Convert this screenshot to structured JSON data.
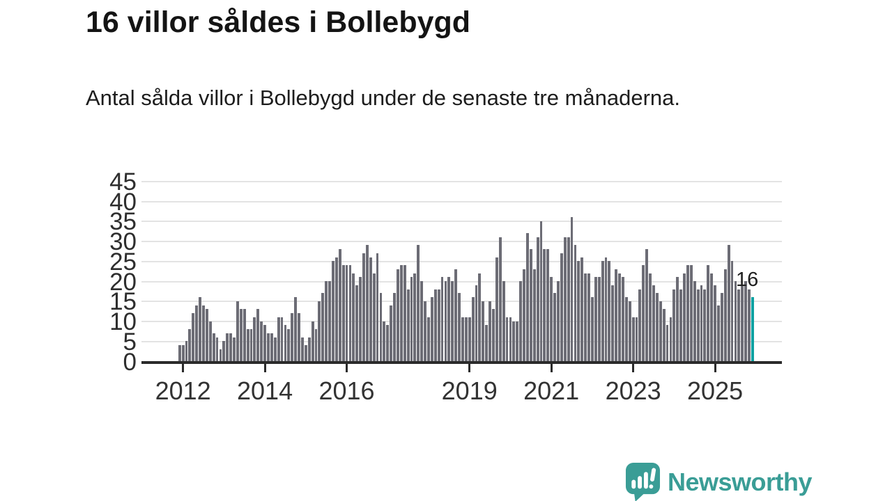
{
  "header": {
    "title": "16 villor såldes i Bollebygd",
    "subtitle": "Antal sålda villor i Bollebygd under de senaste tre månaderna."
  },
  "footer": {
    "brand": "Newsworthy"
  },
  "colors": {
    "bar": "#6c6c75",
    "highlight": "#0da2a3",
    "axis": "#2b2b2b",
    "gridline": "#e3e3e3",
    "logo_teal": "#3a9d96"
  },
  "chart_data": {
    "type": "bar",
    "title": "16 villor såldes i Bollebygd",
    "subtitle": "Antal sålda villor i Bollebygd under de senaste tre månaderna.",
    "start_period": "2011-12",
    "end_period": "2025-12",
    "ylim": [
      0,
      45
    ],
    "grid": true,
    "legend": "none",
    "y_ticks": [
      0,
      5,
      10,
      15,
      20,
      25,
      30,
      35,
      40,
      45
    ],
    "x_ticks": [
      {
        "label": "2012",
        "value_index": 1
      },
      {
        "label": "2014",
        "value_index": 25
      },
      {
        "label": "2016",
        "value_index": 49
      },
      {
        "label": "2019",
        "value_index": 85
      },
      {
        "label": "2021",
        "value_index": 109
      },
      {
        "label": "2023",
        "value_index": 133
      },
      {
        "label": "2025",
        "value_index": 157
      }
    ],
    "values": [
      4,
      4,
      5,
      8,
      12,
      14,
      16,
      14,
      13,
      10,
      7,
      6,
      3,
      5,
      7,
      7,
      6,
      15,
      13,
      13,
      8,
      8,
      11,
      13,
      10,
      9,
      7,
      7,
      6,
      11,
      11,
      9,
      8,
      12,
      16,
      12,
      6,
      4,
      6,
      10,
      8,
      15,
      17,
      20,
      20,
      25,
      26,
      28,
      24,
      24,
      24,
      22,
      19,
      21,
      27,
      29,
      26,
      22,
      27,
      17,
      10,
      9,
      14,
      17,
      23,
      24,
      24,
      18,
      21,
      22,
      29,
      20,
      15,
      11,
      16,
      18,
      18,
      21,
      20,
      21,
      20,
      23,
      17,
      11,
      11,
      11,
      16,
      19,
      22,
      15,
      9,
      15,
      13,
      26,
      31,
      20,
      11,
      11,
      10,
      10,
      20,
      23,
      32,
      28,
      23,
      31,
      35,
      28,
      28,
      21,
      17,
      20,
      27,
      31,
      31,
      36,
      29,
      25,
      26,
      22,
      22,
      16,
      21,
      21,
      25,
      26,
      25,
      19,
      23,
      22,
      21,
      16,
      15,
      11,
      11,
      18,
      24,
      28,
      22,
      19,
      17,
      15,
      13,
      9,
      11,
      18,
      21,
      18,
      22,
      24,
      24,
      20,
      18,
      19,
      18,
      24,
      22,
      19,
      14,
      17,
      23,
      29,
      25,
      20,
      18,
      19,
      20,
      18,
      16
    ],
    "highlight": {
      "index": 168,
      "value": 16,
      "annotation_label": "16",
      "color": "#0da2a3"
    },
    "bar_color": "#6c6c75"
  }
}
